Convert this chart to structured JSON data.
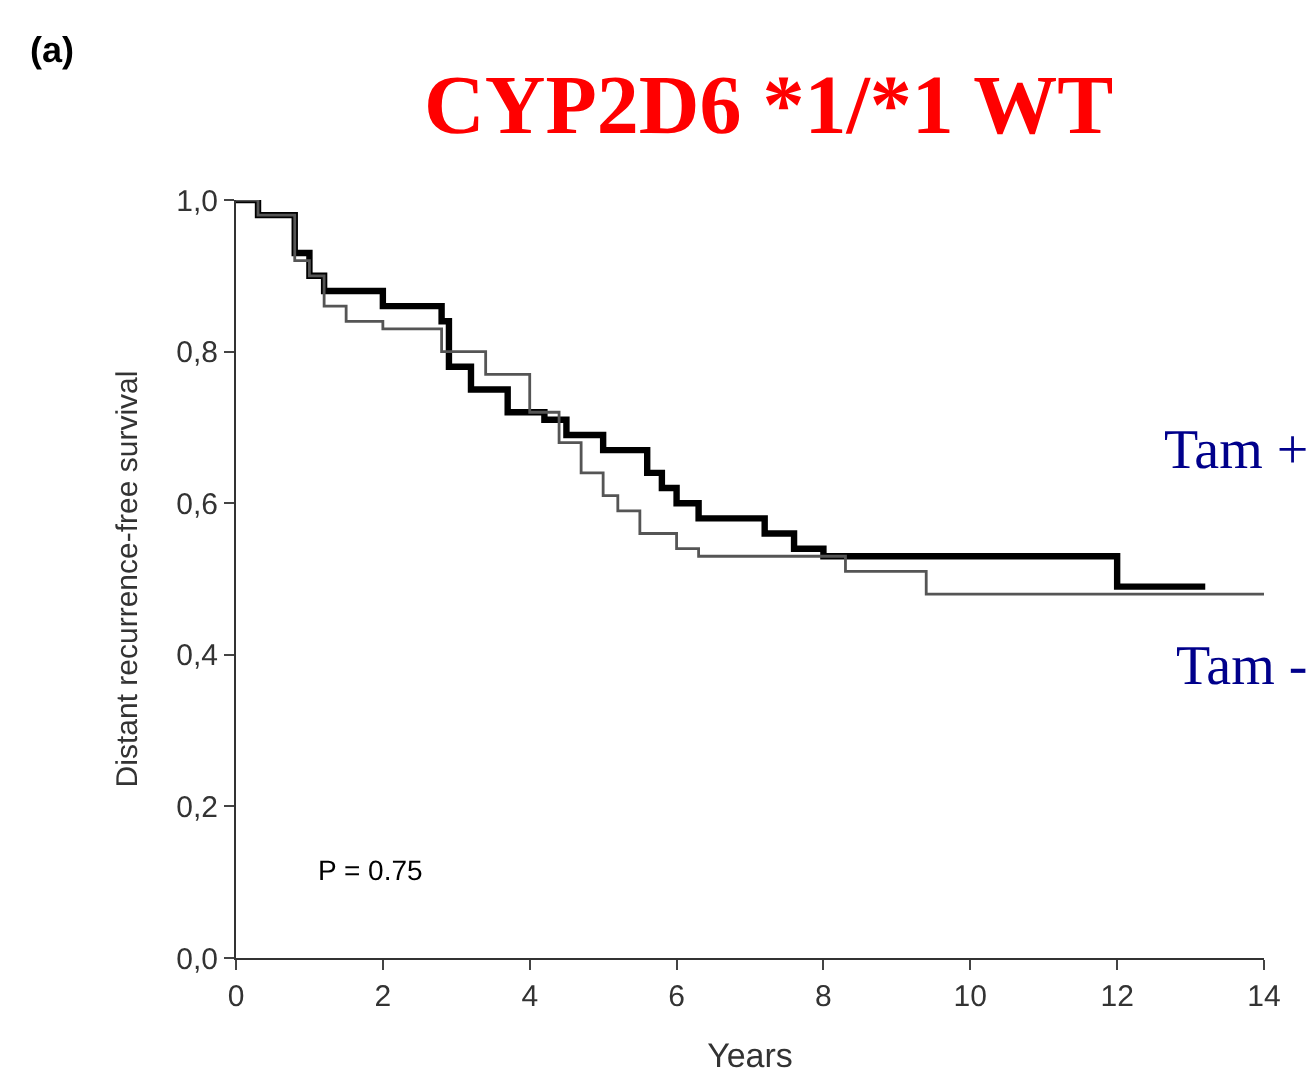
{
  "chart_data": {
    "type": "step",
    "title": "CYP2D6 *1/*1 WT",
    "xlabel": "Years",
    "ylabel": "Distant recurrence-free survival",
    "annotations": [
      "(a)",
      "P = 0.75"
    ],
    "series": [
      {
        "name": "Tam +",
        "color": "#000000",
        "x": [
          0,
          0.3,
          0.8,
          1.0,
          1.2,
          2.0,
          2.8,
          2.9,
          3.2,
          3.7,
          4.2,
          4.5,
          5.0,
          5.6,
          5.8,
          6.0,
          6.3,
          7.2,
          7.6,
          8.0,
          12.0,
          13.2
        ],
        "values": [
          1.0,
          0.98,
          0.93,
          0.9,
          0.88,
          0.86,
          0.84,
          0.78,
          0.75,
          0.72,
          0.71,
          0.69,
          0.67,
          0.64,
          0.62,
          0.6,
          0.58,
          0.56,
          0.54,
          0.53,
          0.49,
          0.49
        ]
      },
      {
        "name": "Tam -",
        "color": "#555555",
        "x": [
          0,
          0.3,
          0.8,
          1.0,
          1.2,
          1.5,
          2.0,
          2.8,
          3.4,
          4.0,
          4.4,
          4.7,
          5.0,
          5.2,
          5.5,
          6.0,
          6.3,
          8.3,
          9.4,
          14.0
        ],
        "values": [
          1.0,
          0.98,
          0.92,
          0.9,
          0.86,
          0.84,
          0.83,
          0.8,
          0.77,
          0.72,
          0.68,
          0.64,
          0.61,
          0.59,
          0.56,
          0.54,
          0.53,
          0.51,
          0.48,
          0.48
        ]
      }
    ],
    "xlim": [
      0,
      14
    ],
    "xticks": [
      0,
      2,
      4,
      6,
      8,
      10,
      12,
      14
    ],
    "ylim": [
      0,
      1.0
    ],
    "yticks": [
      {
        "value": 0,
        "label": "0,0"
      },
      {
        "value": 0.2,
        "label": "0,2"
      },
      {
        "value": 0.4,
        "label": "0,4"
      },
      {
        "value": 0.6,
        "label": "0,6"
      },
      {
        "value": 0.8,
        "label": "0,8"
      },
      {
        "value": 1.0,
        "label": "1,0"
      }
    ],
    "legend": false,
    "marker": "none",
    "line_style": "solid"
  }
}
